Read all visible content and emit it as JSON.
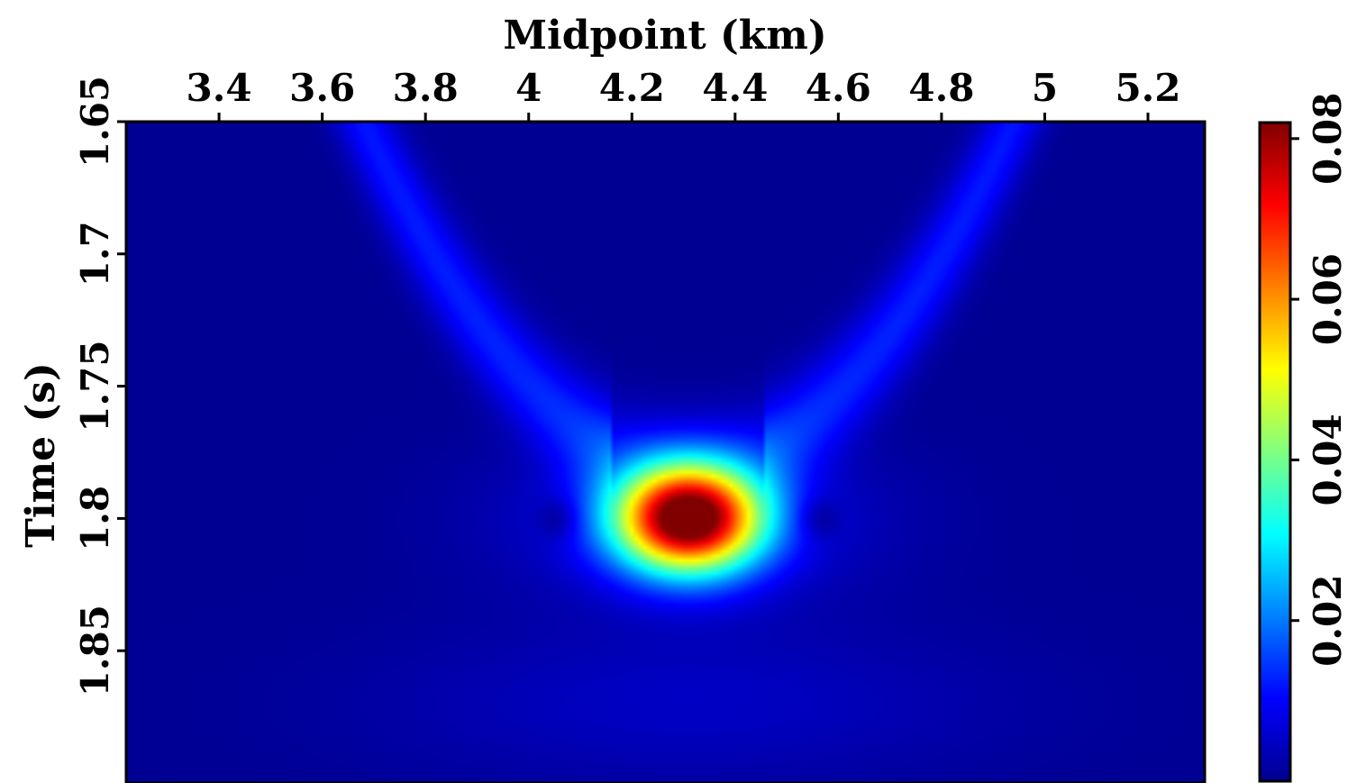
{
  "chart_data": {
    "type": "heatmap",
    "title": "",
    "xlabel": "Midpoint (km)",
    "ylabel": "Time (s)",
    "x_axis_position": "top",
    "xlim": [
      3.22,
      5.31
    ],
    "ylim": [
      1.9,
      1.65
    ],
    "x_ticks": [
      "3.4",
      "3.6",
      "3.8",
      "4",
      "4.2",
      "4.4",
      "4.6",
      "4.8",
      "5",
      "5.2"
    ],
    "x_tick_values": [
      3.4,
      3.6,
      3.8,
      4.0,
      4.2,
      4.4,
      4.6,
      4.8,
      5.0,
      5.2
    ],
    "y_ticks": [
      "1.65",
      "1.7",
      "1.75",
      "1.8",
      "1.85"
    ],
    "y_tick_values": [
      1.65,
      1.7,
      1.75,
      1.8,
      1.85
    ],
    "colormap": "jet",
    "colorbar": {
      "position": "right",
      "min": 0,
      "max": 0.082,
      "ticks": [
        "0.02",
        "0.04",
        "0.06",
        "0.08"
      ],
      "tick_values": [
        0.02,
        0.04,
        0.06,
        0.08
      ]
    },
    "features": {
      "peak": {
        "x": 4.31,
        "t": 1.8,
        "value": 0.082,
        "halfwidth_x": 0.14,
        "halfwidth_t": 0.02
      },
      "background_value": 0.0015,
      "dark_spots": [
        {
          "x": 4.06,
          "t": 1.8
        },
        {
          "x": 4.56,
          "t": 1.8
        }
      ]
    }
  }
}
